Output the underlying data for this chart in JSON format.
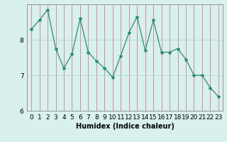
{
  "x": [
    0,
    1,
    2,
    3,
    4,
    5,
    6,
    7,
    8,
    9,
    10,
    11,
    12,
    13,
    14,
    15,
    16,
    17,
    18,
    19,
    20,
    21,
    22,
    23
  ],
  "y": [
    8.3,
    8.55,
    8.85,
    7.75,
    7.2,
    7.6,
    8.6,
    7.65,
    7.4,
    7.2,
    6.95,
    7.55,
    8.2,
    8.65,
    7.7,
    8.55,
    7.65,
    7.65,
    7.75,
    7.45,
    7.0,
    7.0,
    6.65,
    6.4
  ],
  "line_color": "#2e8b77",
  "marker": "*",
  "marker_size": 3,
  "bg_color": "#d8f0ee",
  "grid_color": "#b0d8d0",
  "xlabel": "Humidex (Indice chaleur)",
  "xlim": [
    -0.5,
    23.5
  ],
  "ylim": [
    6.0,
    9.0
  ],
  "yticks": [
    6,
    7,
    8
  ],
  "xticks": [
    0,
    1,
    2,
    3,
    4,
    5,
    6,
    7,
    8,
    9,
    10,
    11,
    12,
    13,
    14,
    15,
    16,
    17,
    18,
    19,
    20,
    21,
    22,
    23
  ],
  "xlabel_fontsize": 7,
  "tick_fontsize": 6.5
}
